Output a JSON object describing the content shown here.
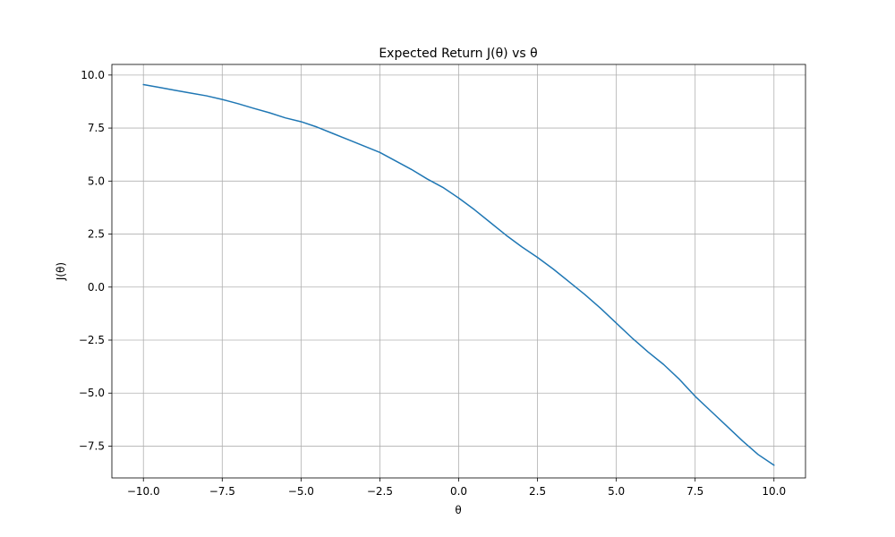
{
  "chart_data": {
    "type": "line",
    "title": "Expected Return J(θ) vs θ",
    "xlabel": "θ",
    "ylabel": "J(θ)",
    "xlim": [
      -11.0,
      11.0
    ],
    "ylim": [
      -9.0,
      10.5
    ],
    "grid": true,
    "x_ticks": [
      -10.0,
      -7.5,
      -5.0,
      -2.5,
      0.0,
      2.5,
      5.0,
      7.5,
      10.0
    ],
    "x_tick_labels": [
      "−10.0",
      "−7.5",
      "−5.0",
      "−2.5",
      "0.0",
      "2.5",
      "5.0",
      "7.5",
      "10.0"
    ],
    "y_ticks": [
      10.0,
      7.5,
      5.0,
      2.5,
      0.0,
      -2.5,
      -5.0,
      -7.5
    ],
    "y_tick_labels": [
      "10.0",
      "7.5",
      "5.0",
      "2.5",
      "0.0",
      "−2.5",
      "−5.0",
      "−7.5"
    ],
    "series": [
      {
        "name": "J(θ)",
        "color": "#1f77b4",
        "x": [
          -10.0,
          -9.5,
          -9.0,
          -8.5,
          -8.0,
          -7.5,
          -7.0,
          -6.5,
          -6.0,
          -5.5,
          -5.0,
          -4.5,
          -4.0,
          -3.5,
          -3.0,
          -2.5,
          -2.0,
          -1.5,
          -1.0,
          -0.5,
          0.0,
          0.5,
          1.0,
          1.5,
          2.0,
          2.5,
          3.0,
          3.5,
          4.0,
          4.5,
          5.0,
          5.5,
          6.0,
          6.5,
          7.0,
          7.5,
          8.0,
          8.5,
          9.0,
          9.5,
          10.0
        ],
        "values": [
          9.55,
          9.42,
          9.28,
          9.15,
          9.02,
          8.85,
          8.65,
          8.43,
          8.22,
          7.98,
          7.8,
          7.55,
          7.25,
          6.95,
          6.65,
          6.35,
          5.95,
          5.55,
          5.1,
          4.7,
          4.2,
          3.65,
          3.05,
          2.45,
          1.9,
          1.4,
          0.85,
          0.25,
          -0.35,
          -1.0,
          -1.7,
          -2.4,
          -3.05,
          -3.65,
          -4.35,
          -5.15,
          -5.85,
          -6.55,
          -7.25,
          -7.9,
          -8.4
        ]
      }
    ]
  }
}
